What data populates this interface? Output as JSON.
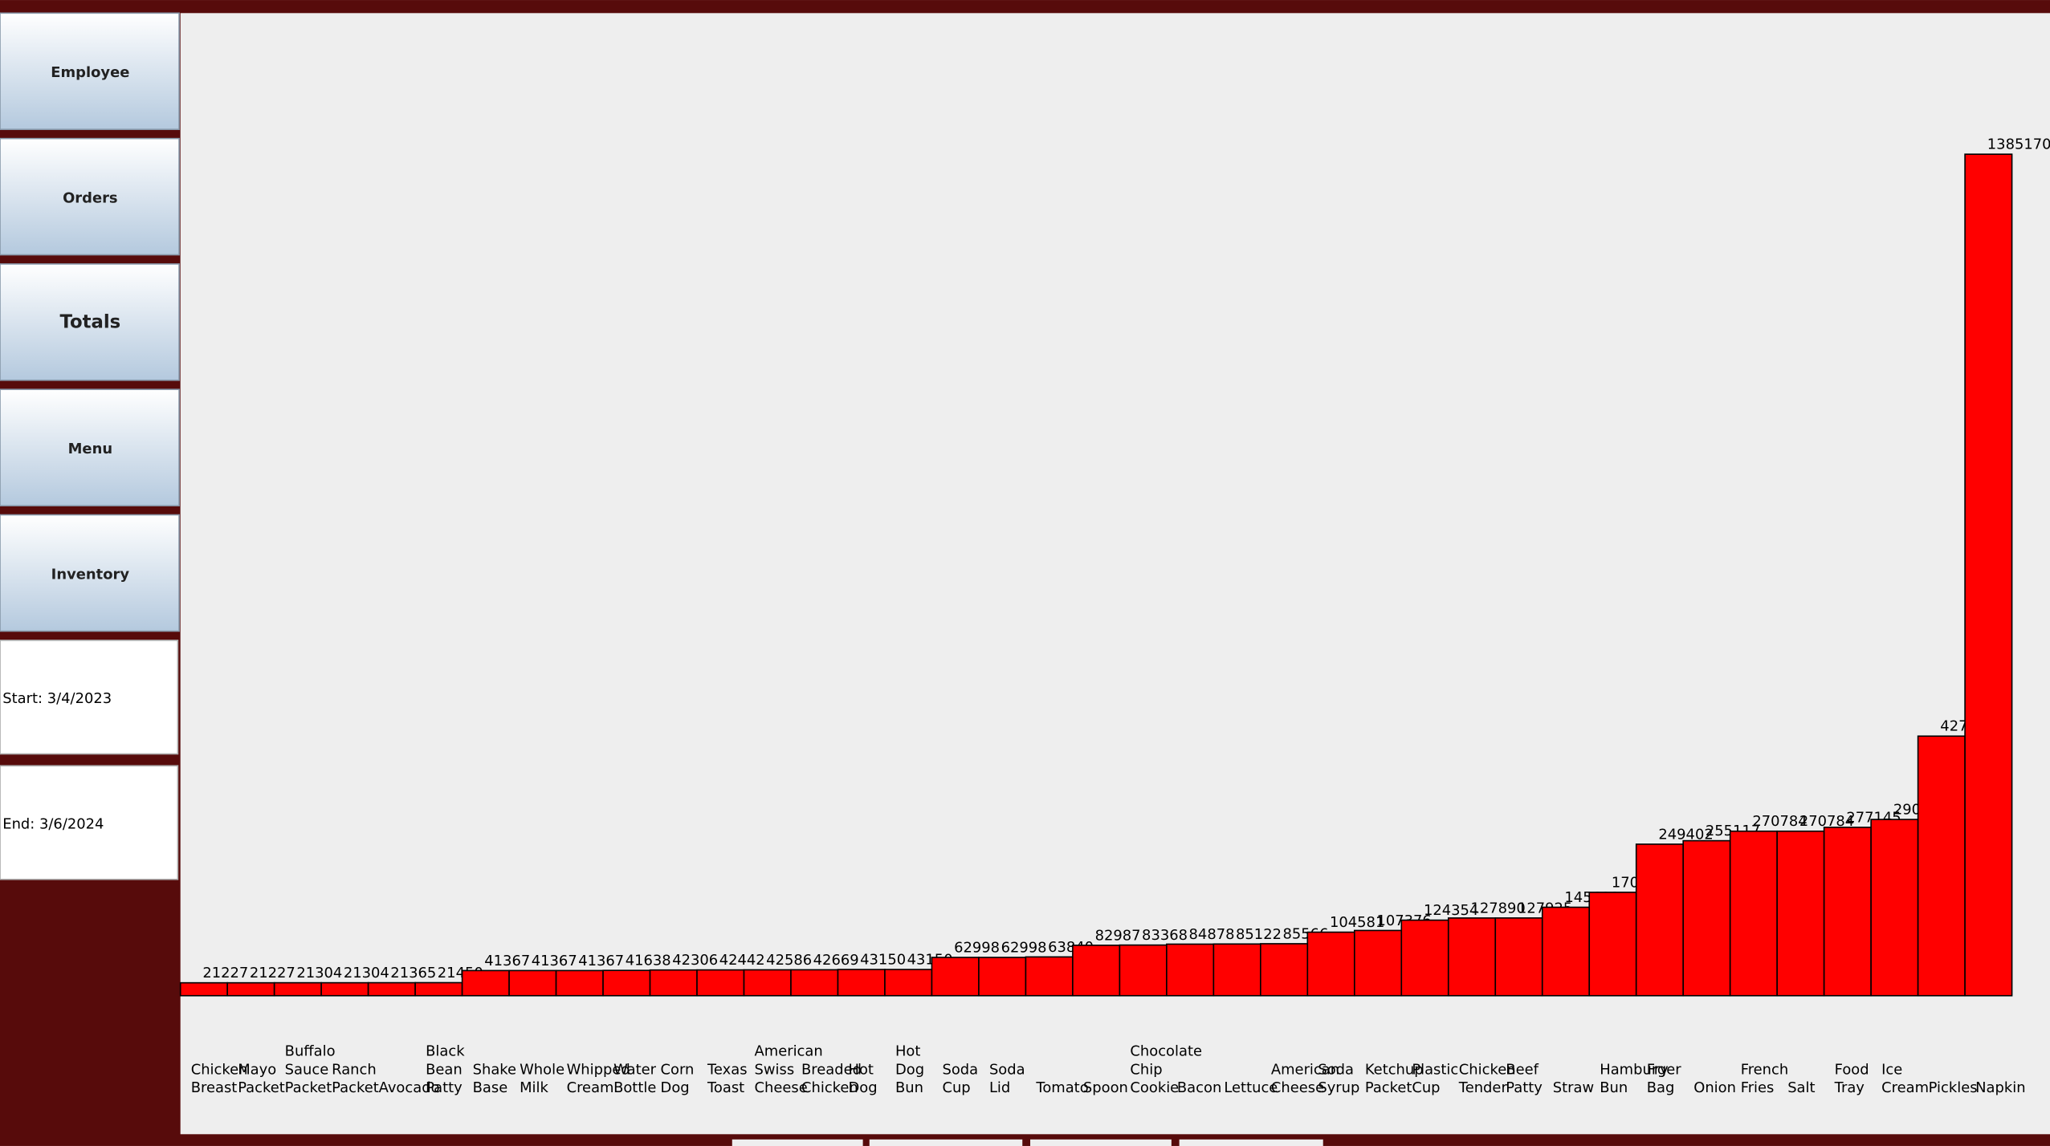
{
  "sidebar": {
    "buttons": [
      "Employee",
      "Orders",
      "Totals",
      "Menu",
      "Inventory"
    ],
    "start": "Start: 3/4/2023",
    "end": "End: 3/6/2024"
  },
  "chart_data": {
    "type": "bar",
    "color": "#ff0000",
    "categories": [
      "Chicken Breast",
      "Mayo Packet",
      "Buffalo Sauce Packet",
      "Ranch Packet",
      "Avocado",
      "Black Bean Patty",
      "Shake Base",
      "Whole Milk",
      "Whipped Cream",
      "Water Bottle",
      "Corn Dog",
      "Texas Toast",
      "American Swiss Cheese",
      "Breaded Chicken",
      "Hot Dog",
      "Hot Dog Bun",
      "Soda Cup",
      "Soda Lid",
      "Tomato",
      "Spoon",
      "Chocolate Chip Cookie",
      "Bacon",
      "Lettuce",
      "American Cheese",
      "Soda Syrup",
      "Ketchup Packet",
      "Plastic Cup",
      "Chicken Tender",
      "Beef Patty",
      "Straw",
      "Hamburger Bun",
      "Fry Bag",
      "Onion",
      "French Fries",
      "Salt",
      "Food Tray",
      "Ice Cream",
      "Pickles",
      "Napkin"
    ],
    "values": [
      21227,
      21227,
      21304,
      21304,
      21365,
      21450,
      41367,
      41367,
      41367,
      41638,
      42306,
      42442,
      42586,
      42669,
      43150,
      43150,
      62998,
      62998,
      63840,
      82987,
      83368,
      84878,
      85122,
      85566,
      104581,
      107376,
      124354,
      127890,
      127925,
      145600,
      170200,
      249402,
      255117,
      270784,
      270784,
      277145,
      290100,
      427300,
      1385170
    ]
  }
}
